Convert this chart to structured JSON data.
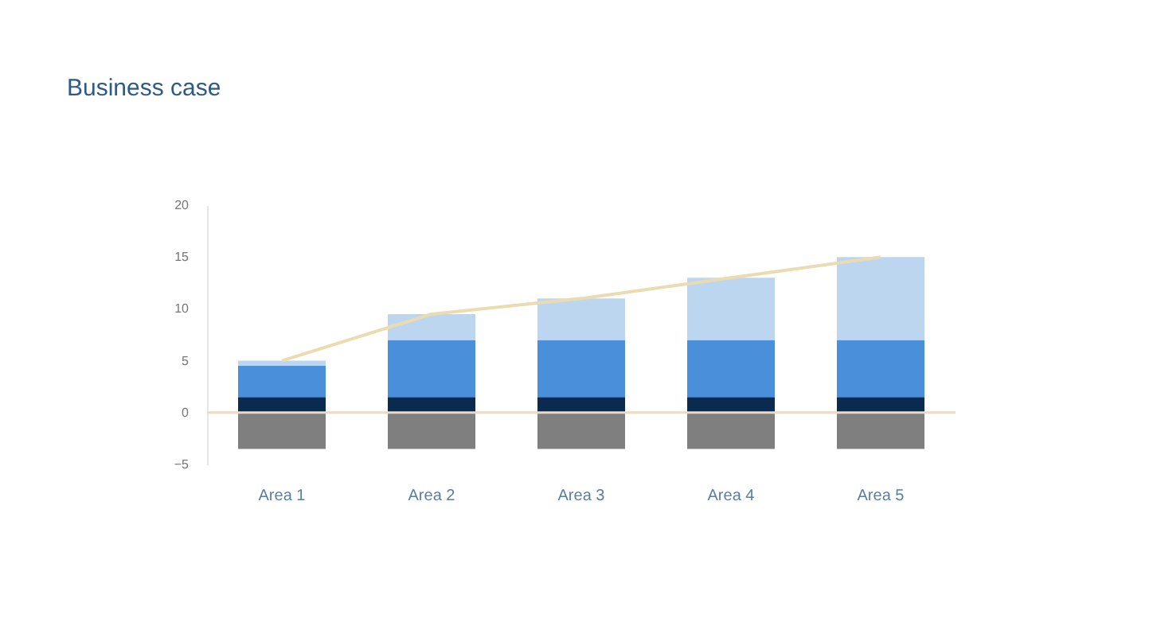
{
  "chart_data": {
    "type": "bar",
    "title": "Business case",
    "stacked": true,
    "categories": [
      "Area 1",
      "Area 2",
      "Area 3",
      "Area 4",
      "Area 5"
    ],
    "series": [
      {
        "color": "#7f7f7f",
        "values": [
          -3.5,
          -3.5,
          -3.5,
          -3.5,
          -3.5
        ]
      },
      {
        "color": "#0b2a50",
        "values": [
          1.5,
          1.5,
          1.5,
          1.5,
          1.5
        ]
      },
      {
        "color": "#4a8fd9",
        "values": [
          3,
          5.5,
          5.5,
          5.5,
          5.5
        ]
      },
      {
        "color": "#bcd6f0",
        "values": [
          0.5,
          2.5,
          4,
          6,
          8
        ]
      },
      {
        "type": "line",
        "color": "#eadcb0",
        "values": [
          5,
          9.5,
          11,
          13,
          15
        ]
      }
    ],
    "ylim": [
      -5,
      20
    ],
    "yticks": [
      -5,
      0,
      5,
      10,
      15,
      20
    ],
    "ref_lines": [
      {
        "axis": "y",
        "value": 0,
        "color": "#f0d9bd"
      }
    ],
    "grid": false,
    "legend": false
  }
}
